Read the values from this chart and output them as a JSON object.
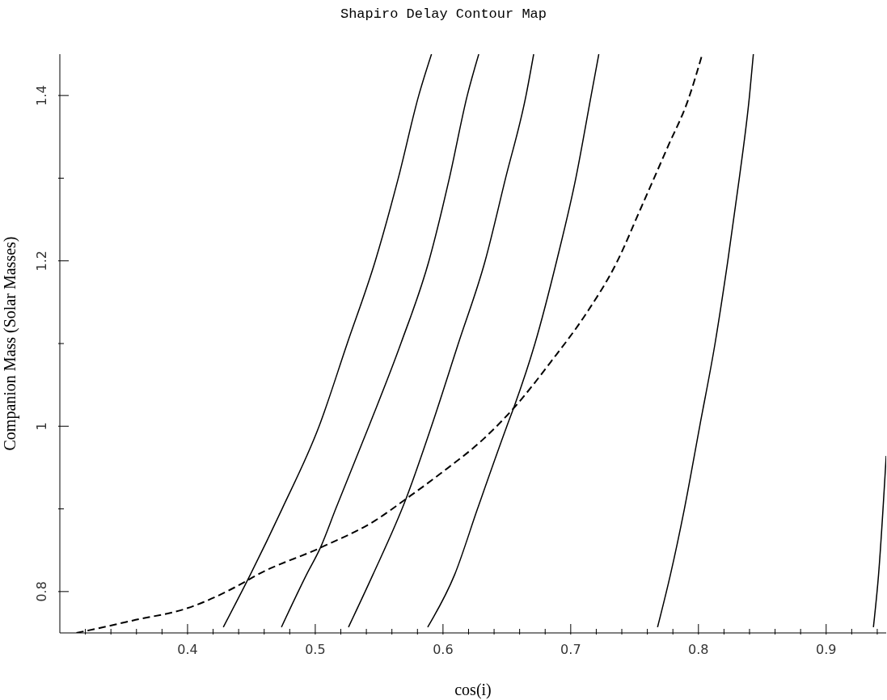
{
  "chart_data": {
    "type": "line",
    "title": "Shapiro Delay Contour Map",
    "xlabel": "cos(i)",
    "ylabel": "Companion Mass (Solar Masses)",
    "xlim": [
      0.3,
      0.947
    ],
    "ylim": [
      0.75,
      1.45
    ],
    "xticks": [
      {
        "value": 0.32,
        "label": null
      },
      {
        "value": 0.34,
        "label": null
      },
      {
        "value": 0.36,
        "label": null
      },
      {
        "value": 0.38,
        "label": null
      },
      0.4,
      {
        "value": 0.42,
        "label": null
      },
      {
        "value": 0.44,
        "label": null
      },
      {
        "value": 0.46,
        "label": null
      },
      {
        "value": 0.48,
        "label": null
      },
      0.5,
      {
        "value": 0.52,
        "label": null
      },
      {
        "value": 0.54,
        "label": null
      },
      {
        "value": 0.56,
        "label": null
      },
      {
        "value": 0.58,
        "label": null
      },
      0.6,
      {
        "value": 0.62,
        "label": null
      },
      {
        "value": 0.64,
        "label": null
      },
      {
        "value": 0.66,
        "label": null
      },
      {
        "value": 0.68,
        "label": null
      },
      0.7,
      {
        "value": 0.72,
        "label": null
      },
      {
        "value": 0.74,
        "label": null
      },
      {
        "value": 0.76,
        "label": null
      },
      {
        "value": 0.78,
        "label": null
      },
      0.8,
      {
        "value": 0.82,
        "label": null
      },
      {
        "value": 0.84,
        "label": null
      },
      {
        "value": 0.86,
        "label": null
      },
      {
        "value": 0.88,
        "label": null
      },
      0.9,
      {
        "value": 0.92,
        "label": null
      },
      {
        "value": 0.94,
        "label": null
      }
    ],
    "yticks": [
      0.8,
      {
        "value": 0.9,
        "label": null
      },
      1,
      {
        "value": 1.1,
        "label": null
      },
      1.2,
      {
        "value": 1.3,
        "label": null
      },
      1.4
    ],
    "series": [
      {
        "color": "#000000",
        "line_style": "solid",
        "x": [
          0.428,
          0.449,
          0.474,
          0.503,
          0.525,
          0.547,
          0.565,
          0.581,
          0.591
        ],
        "values": [
          0.757,
          0.82,
          0.9,
          1.0,
          1.1,
          1.2,
          1.3,
          1.4,
          1.45
        ]
      },
      {
        "color": "#000000",
        "line_style": "solid",
        "x": [
          0.4735,
          0.493,
          0.504,
          0.516,
          0.542,
          0.567,
          0.589,
          0.605,
          0.619,
          0.628
        ],
        "values": [
          0.757,
          0.82,
          0.853,
          0.9,
          1.0,
          1.1,
          1.2,
          1.3,
          1.4,
          1.45
        ]
      },
      {
        "color": "#000000",
        "line_style": "solid",
        "x": [
          0.526,
          0.545,
          0.571,
          0.591,
          0.612,
          0.633,
          0.649,
          0.665,
          0.671
        ],
        "values": [
          0.757,
          0.82,
          0.912,
          1.0,
          1.1,
          1.2,
          1.3,
          1.4,
          1.45
        ]
      },
      {
        "color": "#000000",
        "line_style": "solid",
        "x": [
          0.588,
          0.609,
          0.627,
          0.65,
          0.656,
          0.672,
          0.689,
          0.704,
          0.716,
          0.722
        ],
        "values": [
          0.757,
          0.82,
          0.9,
          1.0,
          1.025,
          1.1,
          1.2,
          1.3,
          1.4,
          1.45
        ]
      },
      {
        "color": "#000000",
        "line_style": "solid",
        "x": [
          0.768,
          0.778,
          0.789,
          0.801,
          0.813,
          0.823,
          0.832,
          0.84,
          0.843
        ],
        "values": [
          0.757,
          0.82,
          0.9,
          1.0,
          1.1,
          1.2,
          1.3,
          1.4,
          1.45
        ]
      },
      {
        "color": "#000000",
        "line_style": "solid",
        "x": [
          0.937,
          0.941,
          0.947
        ],
        "values": [
          0.757,
          0.82,
          0.964
        ]
      },
      {
        "color": "#000000",
        "line_style": "dashed",
        "x": [
          0.313,
          0.343,
          0.357,
          0.4,
          0.444,
          0.453,
          0.504,
          0.547,
          0.571,
          0.6,
          0.632,
          0.656,
          0.685,
          0.712,
          0.736,
          0.755,
          0.776,
          0.792,
          0.803
        ],
        "values": [
          0.75,
          0.76,
          0.765,
          0.78,
          0.811,
          0.819,
          0.853,
          0.886,
          0.912,
          0.945,
          0.985,
          1.023,
          1.079,
          1.136,
          1.198,
          1.264,
          1.338,
          1.395,
          1.45
        ]
      }
    ]
  }
}
